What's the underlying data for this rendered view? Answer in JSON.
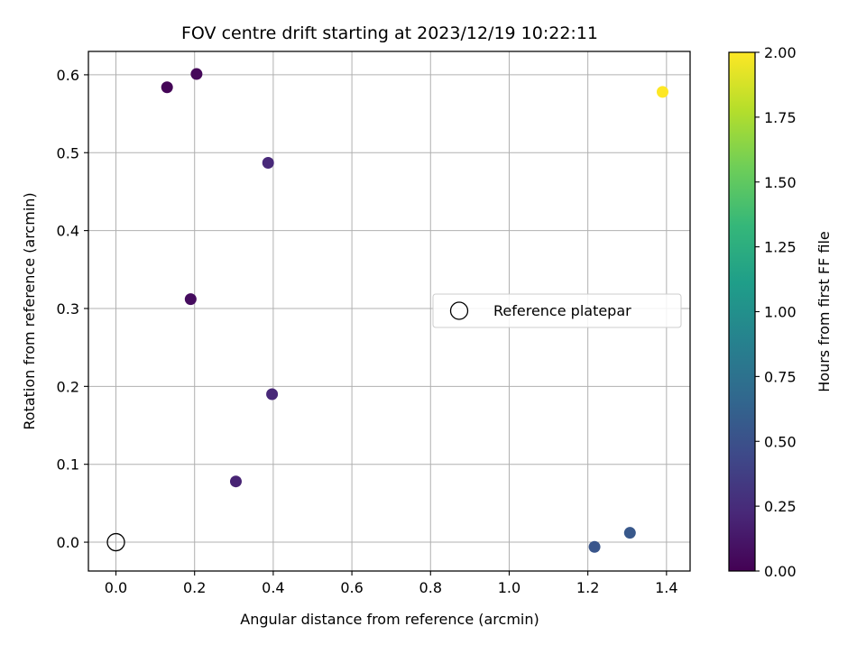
{
  "chart_data": {
    "type": "scatter",
    "title": "FOV centre drift starting at 2023/12/19 10:22:11",
    "xlabel": "Angular distance from reference (arcmin)",
    "ylabel": "Rotation from reference (arcmin)",
    "xlim": [
      -0.07,
      1.46
    ],
    "ylim": [
      -0.037,
      0.63
    ],
    "x_ticks": [
      0.0,
      0.2,
      0.4,
      0.6,
      0.8,
      1.0,
      1.2,
      1.4
    ],
    "x_tick_labels": [
      "0.0",
      "0.2",
      "0.4",
      "0.6",
      "0.8",
      "1.0",
      "1.2",
      "1.4"
    ],
    "y_ticks": [
      0.0,
      0.1,
      0.2,
      0.3,
      0.4,
      0.5,
      0.6
    ],
    "y_tick_labels": [
      "0.0",
      "0.1",
      "0.2",
      "0.3",
      "0.4",
      "0.5",
      "0.6"
    ],
    "grid": true,
    "legend": {
      "placement": "center-right",
      "entries": [
        "Reference platepar"
      ]
    },
    "reference_point": {
      "x": 0.0,
      "y": 0.0
    },
    "colorbar": {
      "label": "Hours from first FF file",
      "colormap": "viridis",
      "range": [
        0.0,
        2.0
      ],
      "ticks": [
        0.0,
        0.25,
        0.5,
        0.75,
        1.0,
        1.25,
        1.5,
        1.75,
        2.0
      ],
      "tick_labels": [
        "0.00",
        "0.25",
        "0.50",
        "0.75",
        "1.00",
        "1.25",
        "1.50",
        "1.75",
        "2.00"
      ]
    },
    "points": [
      {
        "x": 0.13,
        "y": 0.584,
        "hours": 0.02
      },
      {
        "x": 0.205,
        "y": 0.601,
        "hours": 0.04
      },
      {
        "x": 0.19,
        "y": 0.312,
        "hours": 0.06
      },
      {
        "x": 0.305,
        "y": 0.078,
        "hours": 0.2
      },
      {
        "x": 0.397,
        "y": 0.19,
        "hours": 0.22
      },
      {
        "x": 0.387,
        "y": 0.487,
        "hours": 0.23
      },
      {
        "x": 1.217,
        "y": -0.006,
        "hours": 0.53
      },
      {
        "x": 1.307,
        "y": 0.012,
        "hours": 0.55
      },
      {
        "x": 1.39,
        "y": 0.578,
        "hours": 2.0
      }
    ]
  }
}
